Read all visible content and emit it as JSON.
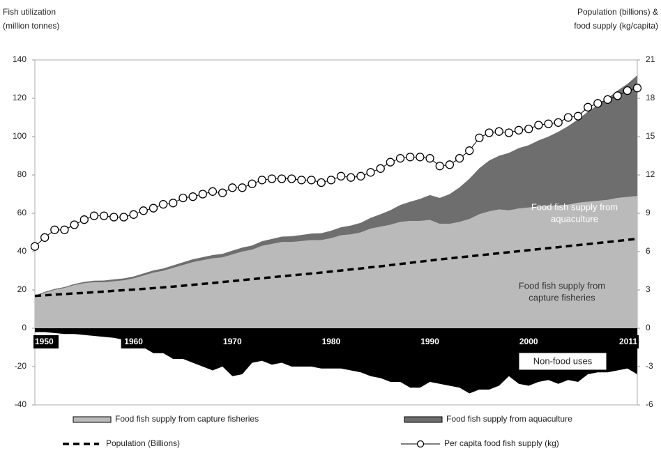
{
  "chart_data": {
    "type": "area",
    "ylabel": [
      "Fish utilization",
      "(million tonnes)"
    ],
    "y2label": [
      "Population (billions) &",
      "food supply (kg/capita)"
    ],
    "x": [
      1950,
      1951,
      1952,
      1953,
      1954,
      1955,
      1956,
      1957,
      1958,
      1959,
      1960,
      1961,
      1962,
      1963,
      1964,
      1965,
      1966,
      1967,
      1968,
      1969,
      1970,
      1971,
      1972,
      1973,
      1974,
      1975,
      1976,
      1977,
      1978,
      1979,
      1980,
      1981,
      1982,
      1983,
      1984,
      1985,
      1986,
      1987,
      1988,
      1989,
      1990,
      1991,
      1992,
      1993,
      1994,
      1995,
      1996,
      1997,
      1998,
      1999,
      2000,
      2001,
      2002,
      2003,
      2004,
      2005,
      2006,
      2007,
      2008,
      2009,
      2010,
      2011
    ],
    "xlim": [
      1950,
      2011
    ],
    "xticks": [
      1950,
      1960,
      1970,
      1980,
      1990,
      2000,
      2011
    ],
    "ylim": [
      -40,
      140
    ],
    "yticks": [
      140,
      120,
      100,
      80,
      60,
      40,
      20,
      0,
      -20,
      -40
    ],
    "y2lim": [
      -6,
      21
    ],
    "y2ticks": [
      21,
      18,
      15,
      12,
      9,
      6,
      3,
      0,
      -3,
      -6
    ],
    "series": [
      {
        "name": "Food fish supply from capture fisheries",
        "kind": "area",
        "color": "#bababa",
        "values": [
          16.5,
          18.5,
          20,
          21,
          22.5,
          23.5,
          24,
          24,
          24.5,
          25,
          26,
          27.5,
          29,
          30,
          31.5,
          33,
          34.5,
          35.5,
          36.5,
          37,
          38.5,
          40,
          41,
          43,
          44,
          45,
          45,
          45.5,
          46,
          46,
          47,
          48.5,
          49,
          50,
          52,
          53,
          54,
          55.5,
          56,
          56,
          56.5,
          54.5,
          54.5,
          55.5,
          57,
          59.5,
          61,
          62,
          61.5,
          62.5,
          63,
          63.5,
          64,
          64,
          64.5,
          65.5,
          66,
          66.5,
          67,
          68,
          68.5,
          69
        ]
      },
      {
        "name": "Food fish supply from aquaculture",
        "kind": "area",
        "stacked_on": 0,
        "color": "#6e6e6e",
        "values": [
          0.5,
          0.5,
          0.5,
          0.5,
          0.6,
          0.7,
          0.8,
          0.9,
          1,
          1,
          1,
          1.1,
          1.2,
          1.2,
          1.3,
          1.4,
          1.5,
          1.6,
          1.7,
          1.8,
          2,
          2.1,
          2.2,
          2.4,
          2.6,
          2.8,
          3,
          3.2,
          3.4,
          3.6,
          3.9,
          4.2,
          4.6,
          5,
          5.6,
          6.5,
          7.6,
          8.8,
          10,
          11.5,
          13,
          13.5,
          15.5,
          18,
          21,
          24,
          26.5,
          28,
          30,
          31.5,
          32.5,
          34.5,
          36,
          38.5,
          41,
          43.5,
          47,
          50,
          53,
          56,
          59,
          63
        ]
      },
      {
        "name": "Non-food uses",
        "kind": "area",
        "color": "#000000",
        "in_legend": false,
        "values": [
          -2,
          -2,
          -2.5,
          -3,
          -3,
          -3.5,
          -4,
          -4.5,
          -5,
          -6,
          -8,
          -10,
          -13,
          -13,
          -16,
          -16,
          -18,
          -20,
          -22,
          -20,
          -25,
          -24,
          -18,
          -17,
          -19,
          -18,
          -20,
          -20,
          -20,
          -21,
          -21,
          -21,
          -22,
          -23,
          -25,
          -26,
          -28,
          -28,
          -31,
          -31,
          -28,
          -29,
          -30,
          -31,
          -34,
          -32,
          -32,
          -30,
          -25,
          -29,
          -30,
          -28,
          -27,
          -29,
          -27,
          -28,
          -24,
          -23,
          -23,
          -22,
          -21,
          -24
        ]
      },
      {
        "name": "Population (Billions)",
        "kind": "dashed",
        "axis": "y2",
        "color": "#000000",
        "values": [
          2.53,
          2.58,
          2.63,
          2.68,
          2.73,
          2.77,
          2.82,
          2.87,
          2.93,
          2.98,
          3.03,
          3.08,
          3.14,
          3.2,
          3.26,
          3.33,
          3.4,
          3.47,
          3.54,
          3.62,
          3.69,
          3.77,
          3.84,
          3.92,
          3.99,
          4.07,
          4.14,
          4.21,
          4.28,
          4.36,
          4.44,
          4.52,
          4.6,
          4.68,
          4.77,
          4.85,
          4.94,
          5.03,
          5.12,
          5.21,
          5.3,
          5.39,
          5.47,
          5.55,
          5.63,
          5.71,
          5.79,
          5.87,
          5.95,
          6.03,
          6.11,
          6.19,
          6.27,
          6.35,
          6.43,
          6.51,
          6.59,
          6.67,
          6.75,
          6.83,
          6.92,
          7.0
        ]
      },
      {
        "name": "Per capita food fish supply (kg)",
        "kind": "markers",
        "axis": "y2",
        "color": "#000000",
        "values": [
          6.4,
          7.1,
          7.7,
          7.7,
          8.1,
          8.5,
          8.8,
          8.8,
          8.7,
          8.7,
          8.9,
          9.2,
          9.4,
          9.7,
          9.8,
          10.2,
          10.3,
          10.5,
          10.7,
          10.6,
          11.0,
          11.0,
          11.3,
          11.6,
          11.7,
          11.7,
          11.7,
          11.6,
          11.6,
          11.4,
          11.6,
          11.9,
          11.8,
          11.9,
          12.2,
          12.5,
          13.0,
          13.3,
          13.4,
          13.4,
          13.3,
          12.7,
          12.8,
          13.3,
          13.9,
          14.9,
          15.3,
          15.4,
          15.3,
          15.5,
          15.6,
          15.9,
          16.0,
          16.1,
          16.5,
          16.6,
          17.3,
          17.6,
          17.9,
          18.2,
          18.6,
          18.8
        ]
      }
    ],
    "annotations": [
      {
        "lines": [
          "Food fish supply from",
          "aquaculture"
        ]
      },
      {
        "lines": [
          "Food fish supply from",
          "capture fisheries"
        ]
      }
    ]
  }
}
